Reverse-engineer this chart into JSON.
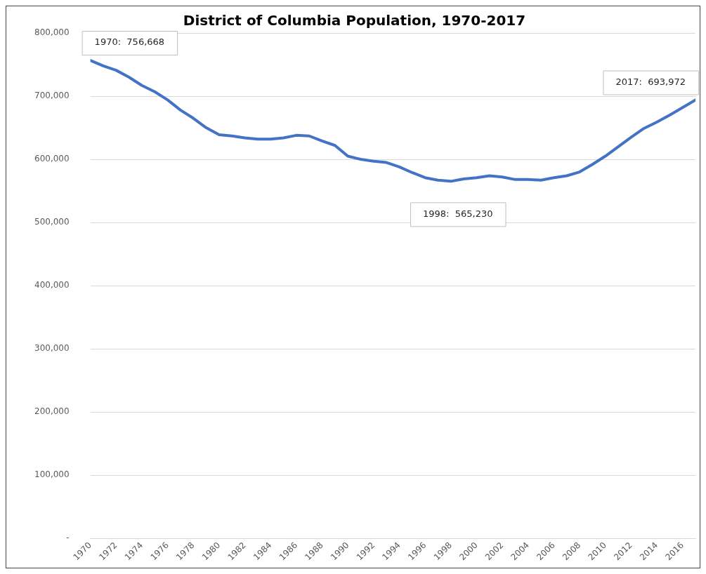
{
  "chart_data": {
    "type": "line",
    "title": "District of Columbia Population, 1970-2017",
    "x": [
      1970,
      1971,
      1972,
      1973,
      1974,
      1975,
      1976,
      1977,
      1978,
      1979,
      1980,
      1981,
      1982,
      1983,
      1984,
      1985,
      1986,
      1987,
      1988,
      1989,
      1990,
      1991,
      1992,
      1993,
      1994,
      1995,
      1996,
      1997,
      1998,
      1999,
      2000,
      2001,
      2002,
      2003,
      2004,
      2005,
      2006,
      2007,
      2008,
      2009,
      2010,
      2011,
      2012,
      2013,
      2014,
      2015,
      2016,
      2017
    ],
    "series": [
      {
        "color": "#4472c4",
        "values": [
          756668,
          748000,
          741000,
          730000,
          717000,
          707000,
          694000,
          678000,
          665000,
          650000,
          639000,
          637000,
          634000,
          632000,
          632000,
          634000,
          638000,
          637000,
          629000,
          622000,
          605000,
          600000,
          597000,
          595000,
          588000,
          579000,
          571000,
          567000,
          565230,
          569000,
          571000,
          574000,
          572000,
          568000,
          568000,
          567000,
          571000,
          574000,
          580000,
          592000,
          605000,
          620000,
          635000,
          649000,
          659000,
          670000,
          682000,
          693972
        ]
      }
    ],
    "xlim": [
      1970,
      2017
    ],
    "xticks": [
      1970,
      1972,
      1974,
      1976,
      1978,
      1980,
      1982,
      1984,
      1986,
      1988,
      1990,
      1992,
      1994,
      1996,
      1998,
      2000,
      2002,
      2004,
      2006,
      2008,
      2010,
      2012,
      2014,
      2016
    ],
    "ylim": [
      0,
      800000
    ],
    "yticks": [
      {
        "value": 0,
        "label": "-"
      },
      {
        "value": 100000,
        "label": "100,000"
      },
      {
        "value": 200000,
        "label": "200,000"
      },
      {
        "value": 300000,
        "label": "300,000"
      },
      {
        "value": 400000,
        "label": "400,000"
      },
      {
        "value": 500000,
        "label": "500,000"
      },
      {
        "value": 600000,
        "label": "600,000"
      },
      {
        "value": 700000,
        "label": "700,000"
      },
      {
        "value": 800000,
        "label": "800,000"
      }
    ],
    "grid": "y",
    "legend": false,
    "marker": "none",
    "line_style": "solid",
    "annotations": [
      {
        "text": "1970:  756,668",
        "x": 1970,
        "y": 756668
      },
      {
        "text": "1998:  565,230",
        "x": 1998,
        "y": 565230
      },
      {
        "text": "2017:  693,972",
        "x": 2017,
        "y": 693972
      }
    ]
  }
}
